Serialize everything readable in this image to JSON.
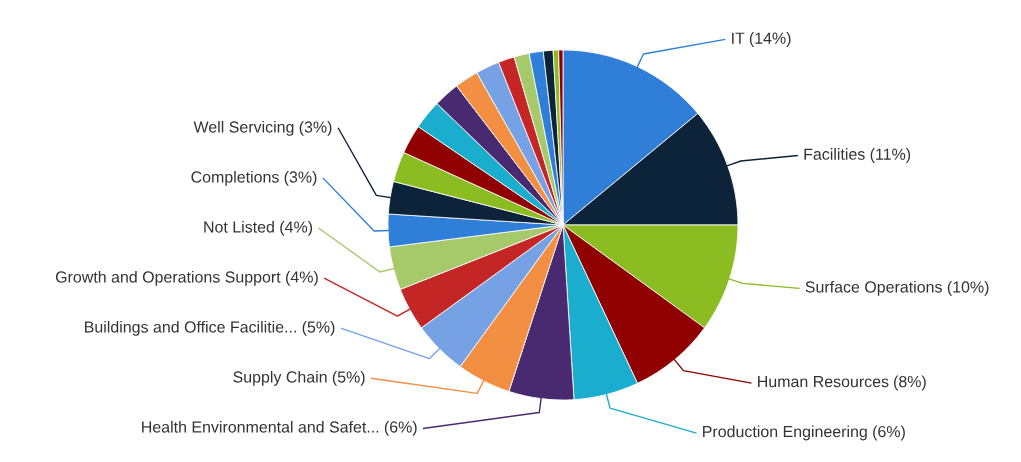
{
  "chart_data": {
    "type": "pie",
    "categories": [
      "IT",
      "Facilities",
      "Surface Operations",
      "Human Resources",
      "Production Engineering",
      "Health Environmental and Safet...",
      "Supply Chain",
      "Buildings and Office Facilitie...",
      "Growth and Operations Support",
      "Not Listed",
      "Completions",
      "Well Servicing",
      null,
      null,
      null,
      null,
      null,
      null,
      null,
      null,
      null,
      null,
      null,
      null
    ],
    "values": [
      14,
      11,
      10,
      8,
      6,
      6,
      5,
      5,
      4,
      4,
      3,
      3,
      2.8,
      2.7,
      2.7,
      2.4,
      2.2,
      2.2,
      1.5,
      1.4,
      1.3,
      0.9,
      0.5,
      0.4
    ],
    "colors": [
      "#2f7ed8",
      "#0d233a",
      "#8bbc21",
      "#910000",
      "#1aadce",
      "#492970",
      "#f28f43",
      "#77a1e5",
      "#c42525",
      "#a6c96a",
      "#2f7ed8",
      "#0d233a",
      "#8bbc21",
      "#910000",
      "#1aadce",
      "#492970",
      "#f28f43",
      "#77a1e5",
      "#c42525",
      "#a6c96a",
      "#2f7ed8",
      "#0d233a",
      "#8bbc21",
      "#910000"
    ],
    "value_labels": [
      "(14%)",
      "(11%)",
      "(10%)",
      "(8%)",
      "(6%)",
      "(6%)",
      "(5%)",
      "(5%)",
      "(4%)",
      "(4%)",
      "(3%)",
      "(3%)",
      null,
      null,
      null,
      null,
      null,
      null,
      null,
      null,
      null,
      null,
      null,
      null
    ]
  }
}
